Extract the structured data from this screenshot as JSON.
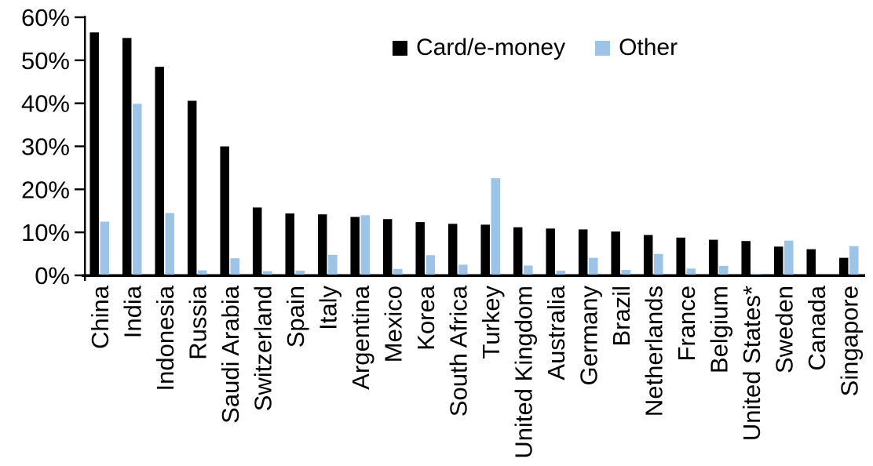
{
  "chart_data": {
    "type": "bar",
    "title": "",
    "xlabel": "",
    "ylabel": "",
    "categories": [
      "China",
      "India",
      "Indonesia",
      "Russia",
      "Saudi Arabia",
      "Switzerland",
      "Spain",
      "Italy",
      "Argentina",
      "Mexico",
      "Korea",
      "South Africa",
      "Turkey",
      "United Kingdom",
      "Australia",
      "Germany",
      "Brazil",
      "Netherlands",
      "France",
      "Belgium",
      "United States*",
      "Sweden",
      "Canada",
      "Singapore"
    ],
    "series": [
      {
        "name": "Card/e-money",
        "color": "#000000",
        "values": [
          56.3,
          55.0,
          48.3,
          40.4,
          29.8,
          15.6,
          14.2,
          14.0,
          13.4,
          12.9,
          12.2,
          11.8,
          11.6,
          11.0,
          10.7,
          10.5,
          10.0,
          9.2,
          8.6,
          8.1,
          7.8,
          6.5,
          5.9,
          3.9
        ]
      },
      {
        "name": "Other",
        "color": "#9DC3E6",
        "values": [
          12.3,
          39.7,
          14.3,
          1.0,
          3.8,
          0.8,
          0.9,
          4.6,
          13.8,
          1.3,
          4.5,
          2.3,
          22.4,
          2.1,
          0.9,
          3.9,
          1.1,
          4.8,
          1.4,
          2.0,
          0.2,
          7.9,
          0,
          6.6
        ]
      }
    ],
    "ylim": [
      0,
      60
    ],
    "yticks": [
      "0%",
      "10%",
      "20%",
      "30%",
      "40%",
      "50%",
      "60%"
    ],
    "ytick_values": [
      0,
      10,
      20,
      30,
      40,
      50,
      60
    ],
    "grid": "off",
    "legend_position": "top-center",
    "axis_color": "#000000",
    "x_label_rotation": -90
  }
}
